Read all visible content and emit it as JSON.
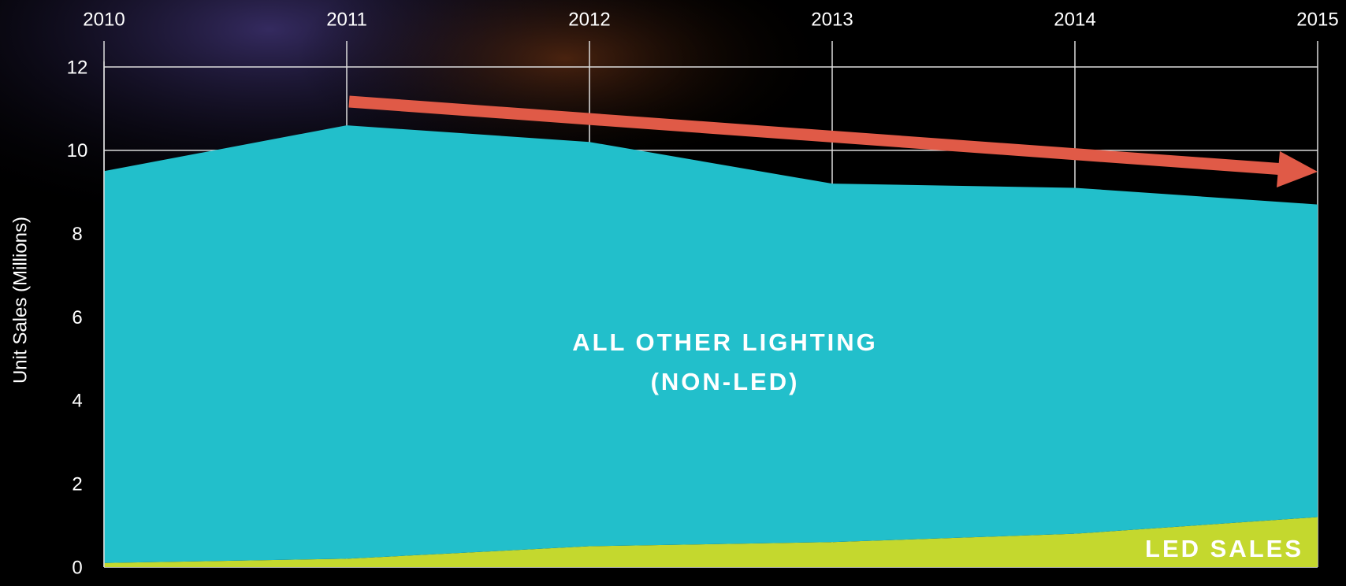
{
  "chart_data": {
    "type": "stacked_area",
    "y_label": "Unit Sales (Millions)",
    "x": [
      2010,
      2011,
      2012,
      2013,
      2014,
      2015
    ],
    "series": [
      {
        "name": "LED SALES",
        "color": "#c4d82e",
        "values": [
          0.1,
          0.2,
          0.5,
          0.6,
          0.8,
          1.2
        ]
      },
      {
        "name": "ALL OTHER LIGHTING (NON-LED)",
        "color": "#22bfcb",
        "values": [
          9.4,
          10.4,
          9.7,
          8.6,
          8.3,
          7.5
        ]
      }
    ],
    "xlim": [
      2010,
      2015
    ],
    "xticks": [
      2010,
      2011,
      2012,
      2013,
      2014,
      2015
    ],
    "ylim": [
      0,
      12
    ],
    "yticks": [
      0,
      2,
      4,
      6,
      8,
      10,
      12
    ],
    "grid": true
  }
}
